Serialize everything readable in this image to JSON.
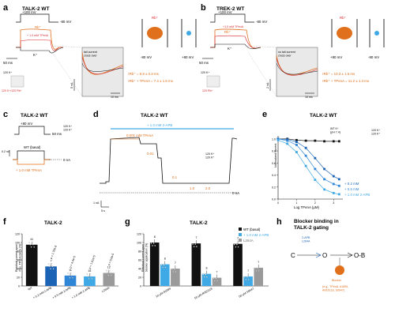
{
  "colors": {
    "orange": "#e0701c",
    "red": "#d8262a",
    "blue": "#1b63b5",
    "lightblue": "#3fa9e6",
    "gray": "#9a9a9a",
    "black": "#111111"
  },
  "panel_a": {
    "letter": "a",
    "title": "TALK-2 WT",
    "v_hold": "+100 mV",
    "v_rest": "-80 mV",
    "tmark": "50 ms",
    "rb_label": "Rb⁺",
    "rb_sub": "+ 1.0 mM TPenA",
    "k_label": "K⁺",
    "ion_k": "120 K⁺",
    "ion_rb": "120 K⁺/120 Rb⁺",
    "cartoon_rb": "Rb⁺",
    "cartoon_v1": "-80 mV",
    "cartoon_v2": "+80 mV",
    "inset_note": "tail current\ncross over",
    "tau1": "τRb⁺ = 8.8 ± 0.3 ms",
    "tau2": "τRb⁺ + TPenA = 7.4 ± 1.6 ms",
    "scale_i": "5 nA",
    "scale_t": "10 ms"
  },
  "panel_b": {
    "letter": "b",
    "title": "TREK-2 WT",
    "v_hold": "+100 mV",
    "v_rest": "-80 mV",
    "tmark": "50 ms",
    "rb_label": "Rb⁺",
    "rb_sub": "+1.0 mM TPenA",
    "k_label": "K⁺",
    "ion_k": "120 K⁺",
    "ion_rb": "120 Rb⁺",
    "cartoon_rb": "Rb⁺",
    "cartoon_v1": "+80 mV",
    "cartoon_v2": "-80 mV",
    "inset_note": "no tail current\ncross over",
    "tau1": "τRb⁺ = 10.3 ± 1.6 ms",
    "tau2": "τRb⁺ + TPenA = 11.2 ± 1.3 ms",
    "scale_i": "2 nA",
    "scale_t": "10 ms"
  },
  "panel_c": {
    "letter": "c",
    "title": "TALK-2 WT",
    "v_hold": "+80 mV",
    "tmark": "50 ms",
    "ion": "120 K⁺\n120 K⁺",
    "trace1": "WT (basal)",
    "zero": "0 nA",
    "trace2": "+ 1.0 mM TPenA",
    "scale_i": "0.2 nA"
  },
  "panel_d": {
    "letter": "d",
    "title": "TALK-2 WT",
    "bar_label": "+ 1.0 mM 2-APB",
    "tpena_label": "0.001 mM TPenA",
    "conc": [
      "0.01",
      "0.1",
      "1.0",
      "2.0"
    ],
    "ion": "120 K⁺\n120 K⁺",
    "zero": "0 nA",
    "scale_i": "1 nA",
    "scale_t": "5 s"
  },
  "panel_e": {
    "letter": "e",
    "title": "TALK-2 WT",
    "ylabel": "Normalized current",
    "xlabel": "Log TPenA (μM)",
    "legend_top": "WT K⁺\n(pH 7.4)",
    "ion": "120 K⁺\n120 K⁺",
    "legend": [
      "+ 0.2 mM",
      "+ 0.5 mM",
      "+ 1.0 mM 2-APB"
    ]
  },
  "panel_f": {
    "letter": "f",
    "title": "TALK-2",
    "ylabel": "Residual current upon\nmax. TPenA block (%)",
    "n_labels": [
      "41",
      "7",
      "11",
      "16",
      "12"
    ],
    "sig_labels": [
      "",
      "p = 1.70e-6",
      "p = 4.4e-5",
      "p = 1.01e-5",
      "p = 6.0e-5"
    ]
  },
  "panel_g": {
    "letter": "g",
    "title": "TALK-2",
    "ylabel": "Residual current upon\nblocker application (%)",
    "legend": [
      "WT (basal)",
      "+ 1.0 mM 2-APB",
      "L264A"
    ],
    "groups": [
      "10 μM A1899",
      "50 μM AVE0118",
      "50 μM S9947"
    ]
  },
  "panel_h": {
    "letter": "h",
    "title": "Blocker binding in\nTALK-2 gating",
    "o_label": "O",
    "c_label": "C",
    "ob_label": "O-B",
    "drug_label": "2-APB\nL264A",
    "blocker_label": "Blocker",
    "examples": "(e.g., TPenA, A1899,\nAVE0118, S9947)"
  },
  "chart_data": [
    {
      "panel": "e",
      "type": "line",
      "title": "TALK-2 WT",
      "xlabel": "Log TPenA (μM)",
      "ylabel": "Normalized current",
      "xlim": [
        0,
        3.5
      ],
      "ylim": [
        0,
        1.05
      ],
      "x_ticks": [
        0,
        1,
        2,
        3
      ],
      "y_ticks": [
        0,
        0.2,
        0.4,
        0.6,
        0.8,
        1.0
      ],
      "series": [
        {
          "name": "WT K⁺ (pH 7.4)",
          "color": "#111111",
          "x": [
            0,
            0.5,
            1,
            1.5,
            2,
            2.5,
            3,
            3.3
          ],
          "values": [
            1.0,
            1.0,
            0.98,
            0.97,
            0.97,
            0.96,
            0.96,
            0.96
          ]
        },
        {
          "name": "+ 0.2 mM",
          "color": "#1b63b5",
          "x": [
            0,
            0.5,
            1,
            1.5,
            2,
            2.5,
            3,
            3.3
          ],
          "values": [
            1.0,
            0.99,
            0.95,
            0.85,
            0.68,
            0.5,
            0.38,
            0.33
          ]
        },
        {
          "name": "+ 0.5 mM",
          "color": "#2f86d6",
          "x": [
            0,
            0.5,
            1,
            1.5,
            2,
            2.5,
            3,
            3.3
          ],
          "values": [
            1.0,
            0.97,
            0.9,
            0.72,
            0.5,
            0.33,
            0.25,
            0.22
          ]
        },
        {
          "name": "+ 1.0 mM 2-APB",
          "color": "#3fa9e6",
          "x": [
            0,
            0.5,
            1,
            1.5,
            2,
            2.5,
            3,
            3.3
          ],
          "values": [
            0.98,
            0.92,
            0.78,
            0.55,
            0.32,
            0.16,
            0.1,
            0.08
          ]
        }
      ]
    },
    {
      "panel": "f",
      "type": "bar",
      "title": "TALK-2",
      "ylabel": "Residual current upon max. TPenA block (%)",
      "ylim": [
        0,
        120
      ],
      "y_ticks": [
        0,
        20,
        40,
        60,
        80,
        100,
        120
      ],
      "categories": [
        "WT",
        "+ 0.2 mM 2-APB",
        "+ 0.5 mM 2-APB",
        "+ 1.0 mM 2-APB",
        "L264A"
      ],
      "values": [
        95,
        45,
        24,
        22,
        30
      ],
      "colors": [
        "#111111",
        "#1b63b5",
        "#2f86d6",
        "#3fa9e6",
        "#9a9a9a"
      ]
    },
    {
      "panel": "g",
      "type": "bar",
      "title": "TALK-2",
      "ylabel": "Residual current upon blocker application (%)",
      "ylim": [
        0,
        120
      ],
      "y_ticks": [
        0,
        20,
        40,
        60,
        80,
        100,
        120
      ],
      "categories": [
        "10 μM A1899",
        "50 μM AVE0118",
        "50 μM S9947"
      ],
      "series": [
        {
          "name": "WT (basal)",
          "color": "#111111",
          "values": [
            100,
            98,
            97
          ]
        },
        {
          "name": "+ 1.0 mM 2-APB",
          "color": "#3fa9e6",
          "values": [
            50,
            28,
            22
          ]
        },
        {
          "name": "L264A",
          "color": "#9a9a9a",
          "values": [
            40,
            19,
            42
          ]
        }
      ],
      "n_labels": [
        [
          "8",
          "8",
          "7"
        ],
        [
          "7",
          "8",
          "7"
        ],
        [
          "7",
          "7",
          "7"
        ]
      ]
    }
  ]
}
